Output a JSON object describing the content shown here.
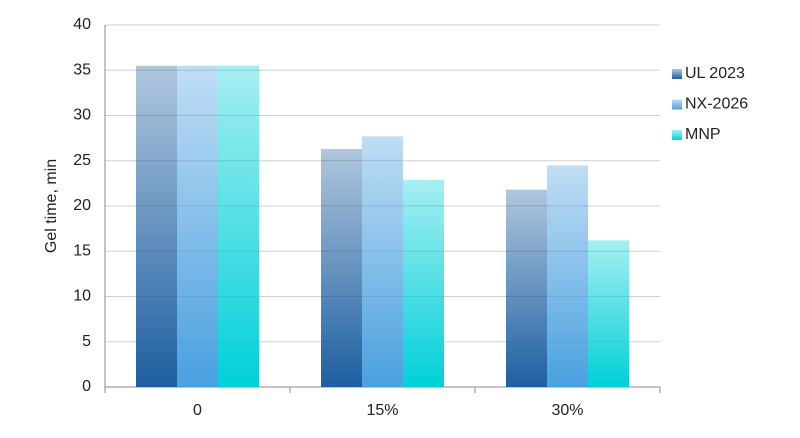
{
  "chart_data": {
    "type": "bar",
    "y_label": "Gel time, min",
    "categories": [
      "0",
      "15%",
      "30%"
    ],
    "series": [
      {
        "name": "UL 2023",
        "color": "#1d5fa0",
        "values": [
          35.5,
          26.3,
          21.8
        ]
      },
      {
        "name": "NX-2026",
        "color": "#4aa0e0",
        "values": [
          35.5,
          27.7,
          24.5
        ]
      },
      {
        "name": "MNP",
        "color": "#00d0d8",
        "values": [
          35.5,
          22.9,
          16.2
        ]
      }
    ],
    "ylim": [
      0,
      40
    ],
    "yticks": [
      0,
      5,
      10,
      15,
      20,
      25,
      30,
      35,
      40
    ],
    "grid": true,
    "legend": "right"
  }
}
